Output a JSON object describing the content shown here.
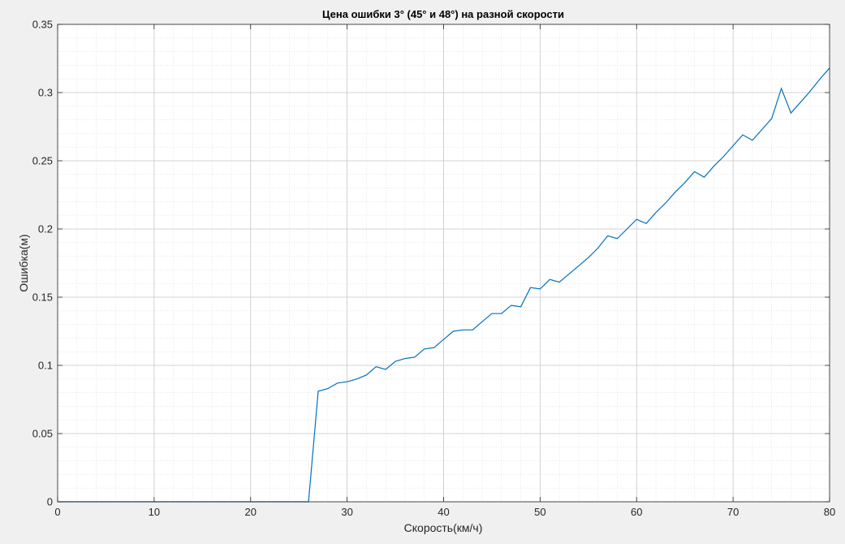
{
  "chart_data": {
    "type": "line",
    "title": "Цена ошибки 3° (45° и 48°) на разной скорости",
    "xlabel": "Скорость(км/ч)",
    "ylabel": "Ошибка(м)",
    "xlim": [
      0,
      80
    ],
    "ylim": [
      0,
      0.35
    ],
    "xticks": [
      0,
      10,
      20,
      30,
      40,
      50,
      60,
      70,
      80
    ],
    "xtick_labels": [
      "0",
      "10",
      "20",
      "30",
      "40",
      "50",
      "60",
      "70",
      "80"
    ],
    "yticks": [
      0,
      0.05,
      0.1,
      0.15,
      0.2,
      0.25,
      0.3,
      0.35
    ],
    "ytick_labels": [
      "0",
      "0.05",
      "0.1",
      "0.15",
      "0.2",
      "0.25",
      "0.3",
      "0.35"
    ],
    "grid": true,
    "minor_grid": true,
    "background": "#ffffff",
    "line_color": "#0072bd",
    "series": [
      {
        "x": [
          0,
          1,
          2,
          3,
          4,
          5,
          6,
          7,
          8,
          9,
          10,
          11,
          12,
          13,
          14,
          15,
          16,
          17,
          18,
          19,
          20,
          21,
          22,
          23,
          24,
          25,
          26,
          27,
          28,
          29,
          30,
          31,
          32,
          33,
          34,
          35,
          36,
          37,
          38,
          39,
          40,
          41,
          42,
          43,
          44,
          45,
          46,
          47,
          48,
          49,
          50,
          51,
          52,
          53,
          54,
          55,
          56,
          57,
          58,
          59,
          60,
          61,
          62,
          63,
          64,
          65,
          66,
          67,
          68,
          69,
          70,
          71,
          72,
          73,
          74,
          75,
          76,
          77,
          78,
          79,
          80
        ],
        "values": [
          0,
          0,
          0,
          0,
          0,
          0,
          0,
          0,
          0,
          0,
          0,
          0,
          0,
          0,
          0,
          0,
          0,
          0,
          0,
          0,
          0,
          0,
          0,
          0,
          0,
          0,
          0,
          0.081,
          0.083,
          0.087,
          0.088,
          0.09,
          0.093,
          0.099,
          0.097,
          0.103,
          0.105,
          0.106,
          0.112,
          0.113,
          0.119,
          0.125,
          0.126,
          0.126,
          0.132,
          0.138,
          0.138,
          0.144,
          0.143,
          0.157,
          0.156,
          0.163,
          0.161,
          0.167,
          0.173,
          0.179,
          0.186,
          0.195,
          0.193,
          0.2,
          0.207,
          0.204,
          0.212,
          0.219,
          0.227,
          0.234,
          0.242,
          0.238,
          0.246,
          0.253,
          0.261,
          0.269,
          0.265,
          0.273,
          0.281,
          0.303,
          0.285,
          0.293,
          0.301,
          0.31,
          0.318
        ]
      }
    ]
  }
}
